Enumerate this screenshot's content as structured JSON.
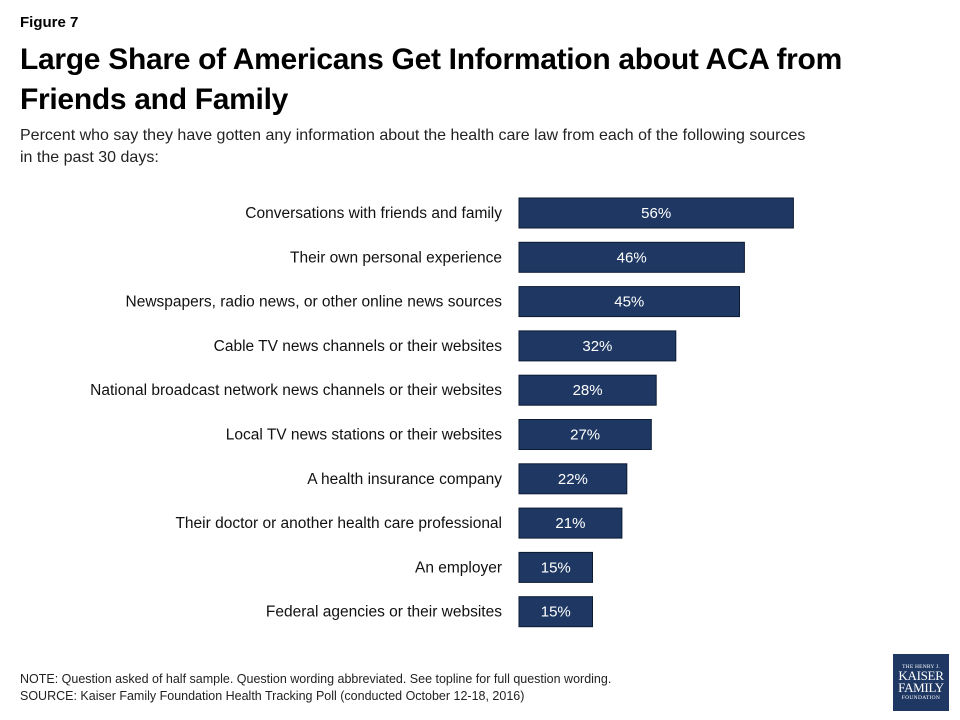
{
  "figure_label": "Figure 7",
  "title": "Large Share of Americans Get Information about ACA from Friends and Family",
  "subtitle": "Percent who say they have gotten any information about the health care law from each of the following sources in the past 30 days:",
  "note": "NOTE: Question asked of half sample. Question wording abbreviated. See topline for full question wording.",
  "source": "SOURCE: Kaiser Family Foundation Health Tracking Poll (conducted October 12-18, 2016)",
  "logo": {
    "line1": "THE HENRY J.",
    "line2": "KAISER",
    "line3": "FAMILY",
    "line4": "FOUNDATION"
  },
  "colors": {
    "bar": "#1f3863",
    "bar_text": "#ffffff"
  },
  "chart_data": {
    "type": "bar",
    "orientation": "horizontal",
    "categories": [
      "Conversations with friends and family",
      "Their own personal experience",
      "Newspapers, radio news, or other online news sources",
      "Cable TV news channels or their websites",
      "National broadcast network news channels or their websites",
      "Local TV news stations or their websites",
      "A health insurance company",
      "Their doctor or another health care professional",
      "An employer",
      "Federal agencies or their websites"
    ],
    "values": [
      56,
      46,
      45,
      32,
      28,
      27,
      22,
      21,
      15,
      15
    ],
    "value_labels": [
      "56%",
      "46%",
      "45%",
      "32%",
      "28%",
      "27%",
      "22%",
      "21%",
      "15%",
      "15%"
    ],
    "unit": "%",
    "xlim": [
      0,
      100
    ],
    "grid": false,
    "legend": "none"
  }
}
